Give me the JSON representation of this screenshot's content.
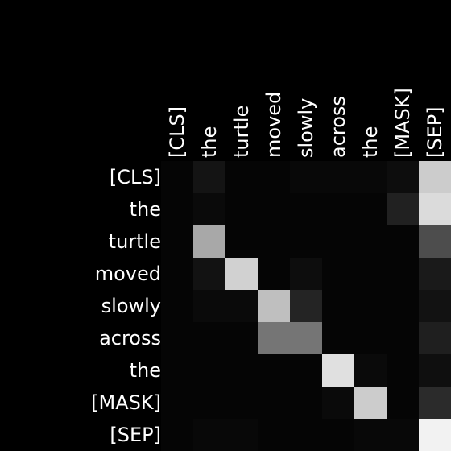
{
  "chart_data": {
    "type": "heatmap",
    "title": "",
    "x_labels": [
      "[CLS]",
      "the",
      "turtle",
      "moved",
      "slowly",
      "across",
      "the",
      "[MASK]",
      "[SEP]"
    ],
    "y_labels": [
      "[CLS]",
      "the",
      "turtle",
      "moved",
      "slowly",
      "across",
      "the",
      "[MASK]",
      "[SEP]"
    ],
    "value_range": [
      0,
      1
    ],
    "colormap": "grayscale",
    "values": [
      [
        0.02,
        0.08,
        0.02,
        0.02,
        0.03,
        0.03,
        0.03,
        0.05,
        0.8
      ],
      [
        0.02,
        0.04,
        0.02,
        0.02,
        0.02,
        0.02,
        0.02,
        0.13,
        0.86
      ],
      [
        0.02,
        0.66,
        0.02,
        0.02,
        0.02,
        0.02,
        0.02,
        0.02,
        0.3
      ],
      [
        0.02,
        0.07,
        0.82,
        0.02,
        0.05,
        0.02,
        0.02,
        0.02,
        0.1
      ],
      [
        0.02,
        0.04,
        0.04,
        0.75,
        0.14,
        0.02,
        0.02,
        0.02,
        0.07
      ],
      [
        0.02,
        0.02,
        0.02,
        0.46,
        0.46,
        0.02,
        0.02,
        0.02,
        0.12
      ],
      [
        0.02,
        0.02,
        0.02,
        0.02,
        0.02,
        0.88,
        0.04,
        0.02,
        0.06
      ],
      [
        0.02,
        0.02,
        0.02,
        0.02,
        0.02,
        0.04,
        0.8,
        0.02,
        0.17
      ],
      [
        0.02,
        0.03,
        0.03,
        0.02,
        0.02,
        0.02,
        0.03,
        0.03,
        0.95
      ]
    ]
  }
}
